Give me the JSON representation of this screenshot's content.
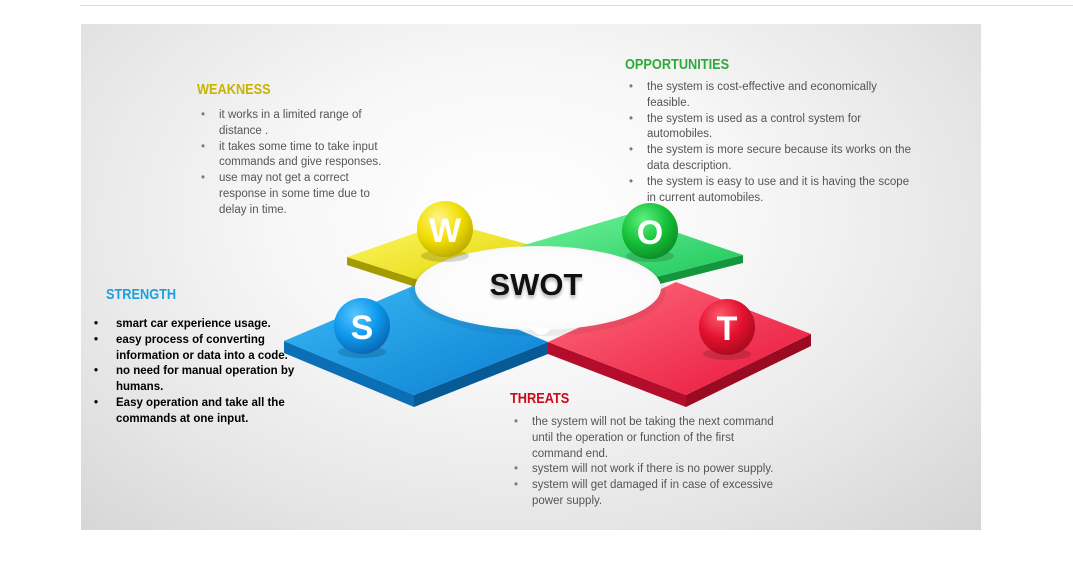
{
  "center_label": "SWOT",
  "quadrants": [
    {
      "key": "weakness",
      "letter": "W",
      "heading": "WEAKNESS",
      "color": "#c8b400",
      "items": [
        "it works in a limited range of distance .",
        "it takes some time to take input commands and give responses.",
        "use may not get a correct response in some time due to delay in time."
      ]
    },
    {
      "key": "opportunities",
      "letter": "O",
      "heading": "OPPORTUNITIES",
      "color": "#2eaa3a",
      "items": [
        "the system is cost-effective and economically feasible.",
        "the system is used as a control system for automobiles.",
        "the system is more secure because its works on the data description.",
        "the system is easy to use and it is having the scope in current automobiles."
      ]
    },
    {
      "key": "strength",
      "letter": "S",
      "heading": "STRENGTH",
      "color": "#1a9fe0",
      "items": [
        "smart car experience usage.",
        "easy process of converting information or data into a code.",
        "no need for manual operation by humans.",
        "Easy operation and take all the commands at one input."
      ]
    },
    {
      "key": "threats",
      "letter": "T",
      "heading": "THREATS",
      "color": "#cc0a1a",
      "items": [
        "the system will not be taking the next command until the operation or function of the first command end.",
        "system will not work if there is no power supply.",
        "system will get damaged if in case of excessive power supply."
      ]
    }
  ]
}
